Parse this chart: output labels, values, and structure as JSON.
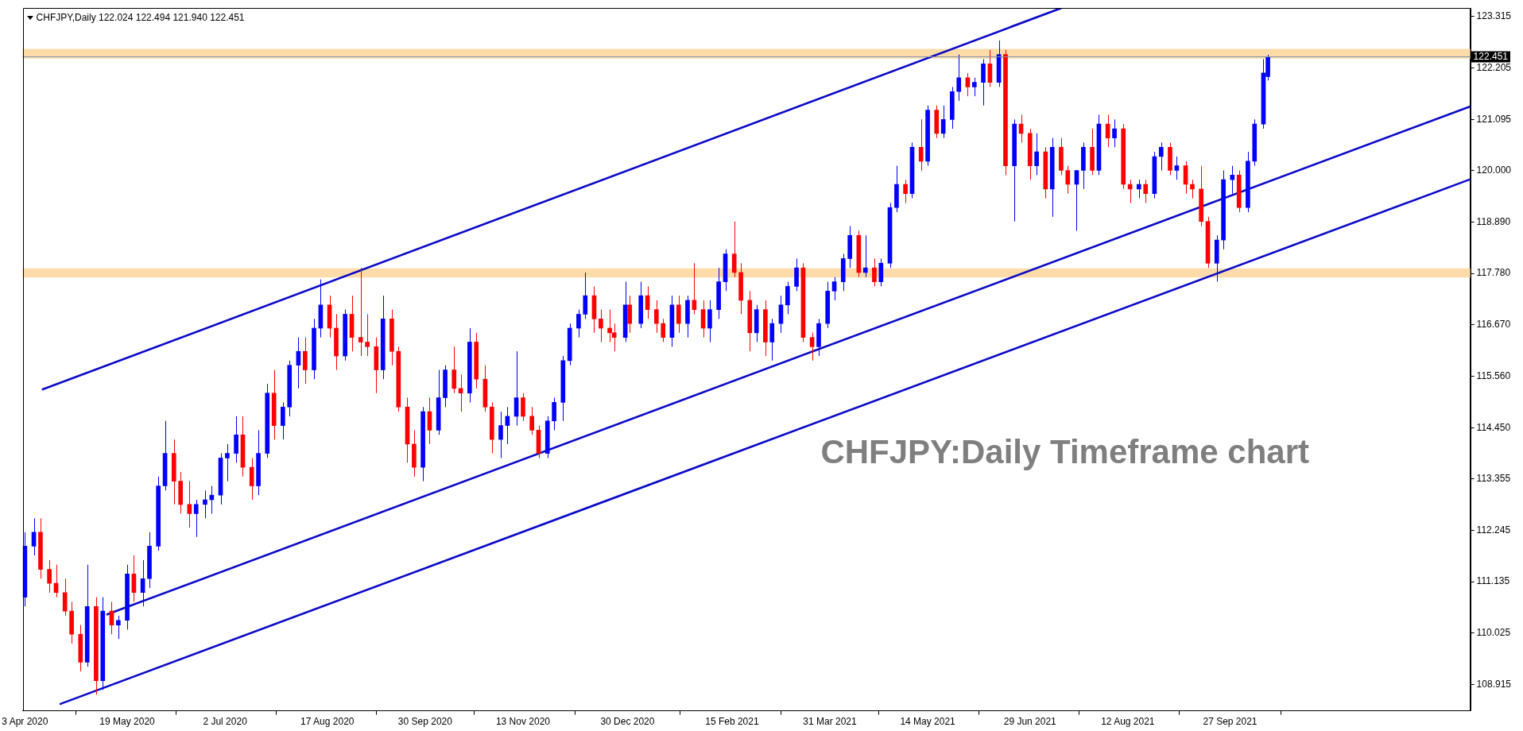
{
  "chart_data": {
    "type": "candlestick",
    "title": "CHFJPY,Daily 122.024 122.494 121.940 122.451",
    "annotations": [
      "CHFJPY:Daily Timeframe chart"
    ],
    "xlim": [
      "2020-04-02",
      "2022-01-13"
    ],
    "xticks": [
      {
        "value": "2020-04-03",
        "label": "3 Apr 2020"
      },
      {
        "value": "2020-05-19",
        "label": "19 May 2020"
      },
      {
        "value": "2020-07-02",
        "label": "2 Jul 2020"
      },
      {
        "value": "2020-08-17",
        "label": "17 Aug 2020"
      },
      {
        "value": "2020-09-30",
        "label": "30 Sep 2020"
      },
      {
        "value": "2020-11-13",
        "label": "13 Nov 2020"
      },
      {
        "value": "2020-12-30",
        "label": "30 Dec 2020"
      },
      {
        "value": "2021-02-15",
        "label": "15 Feb 2021"
      },
      {
        "value": "2021-03-31",
        "label": "31 Mar 2021"
      },
      {
        "value": "2021-05-14",
        "label": "14 May 2021"
      },
      {
        "value": "2021-06-29",
        "label": "29 Jun 2021"
      },
      {
        "value": "2021-08-12",
        "label": "12 Aug 2021"
      },
      {
        "value": "2021-09-27",
        "label": "27 Sep 2021"
      }
    ],
    "ylim": [
      108.35,
      123.5
    ],
    "yticks": [
      {
        "value": 108.915,
        "label": "108.915"
      },
      {
        "value": 110.025,
        "label": "110.025"
      },
      {
        "value": 111.135,
        "label": "111.135"
      },
      {
        "value": 112.245,
        "label": "112.245"
      },
      {
        "value": 113.355,
        "label": "113.355"
      },
      {
        "value": 114.45,
        "label": "114.450"
      },
      {
        "value": 115.56,
        "label": "115.560"
      },
      {
        "value": 116.67,
        "label": "116.670"
      },
      {
        "value": 117.78,
        "label": "117.780"
      },
      {
        "value": 118.89,
        "label": "118.890"
      },
      {
        "value": 120,
        "label": "120.000"
      },
      {
        "value": 121.095,
        "label": "121.095"
      },
      {
        "value": 122.205,
        "label": "122.205"
      },
      {
        "value": 123.315,
        "label": "123.315"
      }
    ],
    "bands": [
      {
        "axis": "y",
        "from": 122.41,
        "to": 122.62,
        "color": "#fddcaa"
      },
      {
        "axis": "y",
        "from": 117.69,
        "to": 117.89,
        "color": "#fddcaa"
      }
    ],
    "ref_lines": [
      {
        "axis": "y",
        "value": 122.451,
        "label": "122.451",
        "color": "#7b93ad"
      }
    ],
    "series": [
      {
        "x": [
          "2020-04-03",
          "2020-04-07",
          "2020-04-10",
          "2020-04-14",
          "2020-04-17",
          "2020-04-21",
          "2020-04-24",
          "2020-04-28",
          "2020-05-01",
          "2020-05-05",
          "2020-05-08",
          "2020-05-12",
          "2020-05-15",
          "2020-05-19",
          "2020-05-22",
          "2020-05-26",
          "2020-05-29",
          "2020-06-02",
          "2020-06-05",
          "2020-06-09",
          "2020-06-12",
          "2020-06-16",
          "2020-06-19",
          "2020-06-23",
          "2020-06-26",
          "2020-06-30",
          "2020-07-03",
          "2020-07-07",
          "2020-07-10",
          "2020-07-14",
          "2020-07-17",
          "2020-07-21",
          "2020-07-24",
          "2020-07-28",
          "2020-07-31",
          "2020-08-04",
          "2020-08-07",
          "2020-08-11",
          "2020-08-14",
          "2020-08-18",
          "2020-08-21",
          "2020-08-25",
          "2020-08-28",
          "2020-09-01",
          "2020-09-04",
          "2020-09-08",
          "2020-09-11",
          "2020-09-15",
          "2020-09-18",
          "2020-09-22",
          "2020-09-25",
          "2020-09-29",
          "2020-10-02",
          "2020-10-06",
          "2020-10-09",
          "2020-10-13",
          "2020-10-16",
          "2020-10-20",
          "2020-10-23",
          "2020-10-27",
          "2020-10-30",
          "2020-11-03",
          "2020-11-06",
          "2020-11-10",
          "2020-11-13",
          "2020-11-17",
          "2020-11-20",
          "2020-11-24",
          "2020-11-27",
          "2020-12-01",
          "2020-12-04",
          "2020-12-08",
          "2020-12-11",
          "2020-12-15",
          "2020-12-18",
          "2020-12-22",
          "2020-12-24",
          "2020-12-29",
          "2020-12-31",
          "2021-01-05",
          "2021-01-08",
          "2021-01-12",
          "2021-01-15",
          "2021-01-19",
          "2021-01-22",
          "2021-01-26",
          "2021-01-29",
          "2021-02-02",
          "2021-02-05",
          "2021-02-09",
          "2021-02-12",
          "2021-02-16",
          "2021-02-19",
          "2021-02-23",
          "2021-02-26",
          "2021-03-02",
          "2021-03-05",
          "2021-03-09",
          "2021-03-12",
          "2021-03-16",
          "2021-03-19",
          "2021-03-23",
          "2021-03-26",
          "2021-03-30",
          "2021-04-02",
          "2021-04-06",
          "2021-04-09",
          "2021-04-13",
          "2021-04-16",
          "2021-04-20",
          "2021-04-23",
          "2021-04-27",
          "2021-04-30",
          "2021-05-04",
          "2021-05-07",
          "2021-05-11",
          "2021-05-14",
          "2021-05-18",
          "2021-05-21",
          "2021-05-25",
          "2021-05-28",
          "2021-06-01",
          "2021-06-04",
          "2021-06-08",
          "2021-06-11",
          "2021-06-15",
          "2021-06-18",
          "2021-06-22",
          "2021-06-25",
          "2021-06-29",
          "2021-07-02",
          "2021-07-06",
          "2021-07-09",
          "2021-07-13",
          "2021-07-16",
          "2021-07-20",
          "2021-07-23",
          "2021-07-27",
          "2021-07-30",
          "2021-08-03",
          "2021-08-06",
          "2021-08-10",
          "2021-08-13",
          "2021-08-17",
          "2021-08-20",
          "2021-08-24",
          "2021-08-27",
          "2021-08-31",
          "2021-09-03",
          "2021-09-07",
          "2021-09-10",
          "2021-09-14",
          "2021-09-17",
          "2021-09-21",
          "2021-09-24",
          "2021-09-28",
          "2021-10-01",
          "2021-10-05",
          "2021-10-08",
          "2021-10-12",
          "2021-10-14"
        ],
        "ohlc": [
          [
            110.8,
            112.2,
            110.6,
            111.9
          ],
          [
            111.9,
            112.5,
            111.7,
            112.2
          ],
          [
            112.2,
            112.5,
            111.2,
            111.4
          ],
          [
            111.4,
            111.6,
            110.9,
            111.1
          ],
          [
            111.1,
            111.5,
            110.8,
            110.9
          ],
          [
            110.9,
            111.2,
            110.4,
            110.5
          ],
          [
            110.5,
            110.7,
            109.8,
            110.0
          ],
          [
            110.0,
            110.2,
            109.2,
            109.4
          ],
          [
            109.4,
            111.5,
            109.3,
            110.6
          ],
          [
            110.6,
            110.8,
            108.7,
            109.0
          ],
          [
            109.0,
            110.8,
            108.8,
            110.5
          ],
          [
            110.5,
            110.7,
            110.0,
            110.2
          ],
          [
            110.2,
            110.4,
            109.9,
            110.3
          ],
          [
            110.3,
            111.5,
            110.1,
            111.3
          ],
          [
            111.3,
            111.7,
            110.7,
            110.9
          ],
          [
            110.9,
            111.6,
            110.6,
            111.2
          ],
          [
            111.2,
            112.2,
            111.0,
            111.9
          ],
          [
            111.9,
            113.4,
            111.8,
            113.2
          ],
          [
            113.2,
            114.6,
            113.1,
            113.9
          ],
          [
            113.9,
            114.2,
            112.8,
            113.3
          ],
          [
            113.3,
            113.5,
            112.6,
            112.8
          ],
          [
            112.8,
            113.3,
            112.3,
            112.6
          ],
          [
            112.6,
            112.9,
            112.1,
            112.8
          ],
          [
            112.8,
            113.1,
            112.5,
            112.9
          ],
          [
            112.9,
            113.2,
            112.6,
            113.0
          ],
          [
            113.0,
            113.9,
            112.8,
            113.8
          ],
          [
            113.8,
            114.1,
            113.3,
            113.9
          ],
          [
            113.9,
            114.7,
            113.7,
            114.3
          ],
          [
            114.3,
            114.7,
            113.4,
            113.6
          ],
          [
            113.6,
            113.8,
            112.9,
            113.2
          ],
          [
            113.2,
            114.4,
            113.0,
            113.9
          ],
          [
            113.9,
            115.4,
            113.8,
            115.2
          ],
          [
            115.2,
            115.7,
            114.2,
            114.5
          ],
          [
            114.5,
            115.0,
            114.2,
            114.9
          ],
          [
            114.9,
            115.9,
            114.7,
            115.8
          ],
          [
            115.8,
            116.4,
            115.3,
            116.1
          ],
          [
            116.1,
            116.4,
            115.4,
            115.7
          ],
          [
            115.7,
            116.8,
            115.5,
            116.6
          ],
          [
            116.6,
            117.65,
            116.4,
            117.1
          ],
          [
            117.1,
            117.3,
            116.4,
            116.6
          ],
          [
            116.6,
            116.9,
            115.7,
            116.0
          ],
          [
            116.0,
            117.0,
            115.9,
            116.9
          ],
          [
            116.9,
            117.3,
            116.1,
            116.4
          ],
          [
            116.4,
            117.9,
            116.0,
            116.3
          ],
          [
            116.3,
            116.9,
            116.0,
            116.2
          ],
          [
            116.2,
            116.4,
            115.2,
            115.7
          ],
          [
            115.7,
            117.3,
            115.5,
            116.8
          ],
          [
            116.8,
            117.0,
            115.8,
            116.1
          ],
          [
            116.1,
            116.2,
            114.8,
            114.9
          ],
          [
            114.9,
            115.1,
            113.7,
            114.1
          ],
          [
            114.1,
            114.4,
            113.4,
            113.6
          ],
          [
            113.6,
            114.9,
            113.3,
            114.8
          ],
          [
            114.8,
            115.1,
            114.1,
            114.4
          ],
          [
            114.4,
            115.7,
            114.3,
            115.1
          ],
          [
            115.1,
            115.8,
            114.9,
            115.7
          ],
          [
            115.7,
            116.2,
            115.2,
            115.3
          ],
          [
            115.3,
            115.6,
            114.8,
            115.2
          ],
          [
            115.2,
            116.6,
            115.0,
            116.3
          ],
          [
            116.3,
            116.5,
            115.3,
            115.5
          ],
          [
            115.5,
            115.8,
            114.8,
            114.9
          ],
          [
            114.9,
            115.0,
            113.9,
            114.2
          ],
          [
            114.2,
            114.8,
            113.8,
            114.5
          ],
          [
            114.5,
            114.9,
            114.1,
            114.7
          ],
          [
            114.7,
            116.1,
            114.5,
            115.1
          ],
          [
            115.1,
            115.2,
            114.6,
            114.7
          ],
          [
            114.7,
            114.9,
            114.3,
            114.4
          ],
          [
            114.4,
            114.5,
            113.8,
            113.9
          ],
          [
            113.9,
            114.7,
            113.8,
            114.6
          ],
          [
            114.6,
            115.1,
            114.4,
            115.0
          ],
          [
            115.0,
            116.0,
            114.6,
            115.9
          ],
          [
            115.9,
            116.7,
            115.8,
            116.6
          ],
          [
            116.6,
            117.0,
            116.4,
            116.9
          ],
          [
            116.9,
            117.8,
            116.8,
            117.3
          ],
          [
            117.3,
            117.5,
            116.5,
            116.8
          ],
          [
            116.8,
            117.0,
            116.3,
            116.6
          ],
          [
            116.6,
            117.0,
            116.3,
            116.5
          ],
          [
            116.5,
            116.7,
            116.1,
            116.4
          ],
          [
            116.4,
            117.6,
            116.3,
            117.1
          ],
          [
            117.1,
            117.3,
            116.5,
            116.7
          ],
          [
            116.7,
            117.6,
            116.6,
            117.3
          ],
          [
            117.3,
            117.5,
            116.8,
            117.0
          ],
          [
            117.0,
            117.2,
            116.5,
            116.7
          ],
          [
            116.7,
            116.8,
            116.3,
            116.4
          ],
          [
            116.4,
            117.3,
            116.2,
            117.1
          ],
          [
            117.1,
            117.3,
            116.5,
            116.7
          ],
          [
            116.7,
            117.3,
            116.4,
            117.2
          ],
          [
            117.2,
            118.0,
            116.9,
            117.0
          ],
          [
            117.0,
            117.2,
            116.4,
            116.6
          ],
          [
            116.6,
            117.2,
            116.3,
            117.0
          ],
          [
            117.0,
            117.9,
            116.8,
            117.6
          ],
          [
            117.6,
            118.3,
            117.4,
            118.2
          ],
          [
            118.2,
            118.9,
            117.7,
            117.8
          ],
          [
            117.8,
            118.0,
            116.9,
            117.2
          ],
          [
            117.2,
            117.4,
            116.1,
            116.5
          ],
          [
            116.5,
            117.1,
            116.3,
            117.0
          ],
          [
            117.0,
            117.2,
            116.0,
            116.3
          ],
          [
            116.3,
            116.8,
            115.9,
            116.7
          ],
          [
            116.7,
            117.3,
            116.5,
            117.1
          ],
          [
            117.1,
            117.6,
            116.9,
            117.5
          ],
          [
            117.5,
            118.1,
            117.4,
            117.9
          ],
          [
            117.9,
            118.0,
            116.3,
            116.4
          ],
          [
            116.4,
            116.5,
            115.9,
            116.2
          ],
          [
            116.2,
            116.8,
            116.0,
            116.7
          ],
          [
            116.7,
            117.6,
            116.6,
            117.4
          ],
          [
            117.4,
            117.7,
            117.2,
            117.6
          ],
          [
            117.6,
            118.2,
            117.4,
            118.1
          ],
          [
            118.1,
            118.8,
            117.9,
            118.6
          ],
          [
            118.6,
            118.7,
            117.7,
            117.8
          ],
          [
            117.8,
            118.6,
            117.7,
            117.9
          ],
          [
            117.9,
            118.1,
            117.5,
            117.6
          ],
          [
            117.6,
            118.1,
            117.5,
            118.0
          ],
          [
            118.0,
            119.3,
            117.9,
            119.2
          ],
          [
            119.2,
            120.1,
            119.1,
            119.7
          ],
          [
            119.7,
            119.8,
            119.3,
            119.5
          ],
          [
            119.5,
            120.6,
            119.4,
            120.5
          ],
          [
            120.5,
            121.1,
            120.0,
            120.2
          ],
          [
            120.2,
            121.4,
            120.1,
            121.3
          ],
          [
            121.3,
            121.4,
            120.7,
            120.8
          ],
          [
            120.8,
            121.4,
            120.7,
            121.1
          ],
          [
            121.1,
            121.8,
            120.9,
            121.7
          ],
          [
            121.7,
            122.5,
            121.5,
            122.0
          ],
          [
            122.0,
            122.1,
            121.6,
            121.8
          ],
          [
            121.8,
            122.0,
            121.6,
            121.9
          ],
          [
            121.9,
            122.4,
            121.4,
            122.3
          ],
          [
            122.3,
            122.6,
            121.8,
            121.9
          ],
          [
            121.9,
            122.8,
            121.8,
            122.5
          ],
          [
            122.5,
            122.6,
            119.9,
            120.1
          ],
          [
            120.1,
            121.1,
            118.9,
            121.0
          ],
          [
            121.0,
            121.2,
            120.6,
            120.8
          ],
          [
            120.8,
            120.9,
            119.8,
            120.1
          ],
          [
            120.1,
            120.8,
            119.9,
            120.4
          ],
          [
            120.4,
            120.5,
            119.4,
            119.6
          ],
          [
            119.6,
            120.7,
            119.0,
            120.5
          ],
          [
            120.5,
            120.7,
            119.9,
            120.0
          ],
          [
            120.0,
            120.1,
            119.5,
            119.7
          ],
          [
            119.7,
            120.0,
            118.7,
            120.0
          ],
          [
            120.0,
            120.6,
            119.6,
            120.5
          ],
          [
            120.5,
            120.9,
            119.9,
            120.0
          ],
          [
            120.0,
            121.2,
            119.9,
            121.0
          ],
          [
            121.0,
            121.2,
            120.5,
            120.7
          ],
          [
            120.7,
            121.1,
            120.5,
            120.9
          ],
          [
            120.9,
            121.0,
            119.6,
            119.7
          ],
          [
            119.7,
            119.8,
            119.3,
            119.6
          ],
          [
            119.6,
            119.8,
            119.4,
            119.7
          ],
          [
            119.7,
            119.8,
            119.3,
            119.5
          ],
          [
            119.5,
            120.4,
            119.4,
            120.3
          ],
          [
            120.3,
            120.6,
            120.0,
            120.5
          ],
          [
            120.5,
            120.6,
            119.9,
            120.0
          ],
          [
            120.0,
            120.3,
            119.8,
            120.1
          ],
          [
            120.1,
            120.2,
            119.5,
            119.7
          ],
          [
            119.7,
            119.8,
            119.4,
            119.6
          ],
          [
            119.6,
            120.1,
            118.8,
            118.9
          ],
          [
            118.9,
            119.0,
            117.9,
            118.0
          ],
          [
            118.0,
            118.6,
            117.6,
            118.5
          ],
          [
            118.5,
            120.0,
            118.3,
            119.8
          ],
          [
            119.8,
            120.1,
            119.5,
            119.9
          ],
          [
            119.9,
            120.0,
            119.1,
            119.2
          ],
          [
            119.2,
            120.4,
            119.1,
            120.2
          ],
          [
            120.2,
            121.1,
            120.1,
            121.0
          ],
          [
            121.0,
            122.4,
            120.9,
            122.1
          ],
          [
            122.024,
            122.494,
            121.94,
            122.451
          ]
        ],
        "colors": [
          "#0000ff",
          "#0000ff",
          "#ff0000",
          "#ff0000",
          "#ff0000",
          "#ff0000",
          "#ff0000",
          "#ff0000",
          "#0000ff",
          "#ff0000",
          "#0000ff",
          "#ff0000",
          "#0000ff",
          "#0000ff",
          "#ff0000",
          "#0000ff",
          "#0000ff",
          "#0000ff",
          "#0000ff",
          "#ff0000",
          "#ff0000",
          "#ff0000",
          "#0000ff",
          "#0000ff",
          "#0000ff",
          "#0000ff",
          "#0000ff",
          "#0000ff",
          "#ff0000",
          "#ff0000",
          "#0000ff",
          "#0000ff",
          "#ff0000",
          "#0000ff",
          "#0000ff",
          "#0000ff",
          "#ff0000",
          "#0000ff",
          "#0000ff",
          "#ff0000",
          "#ff0000",
          "#0000ff",
          "#ff0000",
          "#ff0000",
          "#ff0000",
          "#ff0000",
          "#0000ff",
          "#ff0000",
          "#ff0000",
          "#ff0000",
          "#ff0000",
          "#0000ff",
          "#ff0000",
          "#0000ff",
          "#0000ff",
          "#ff0000",
          "#ff0000",
          "#0000ff",
          "#ff0000",
          "#ff0000",
          "#ff0000",
          "#0000ff",
          "#0000ff",
          "#0000ff",
          "#ff0000",
          "#ff0000",
          "#ff0000",
          "#0000ff",
          "#0000ff",
          "#0000ff",
          "#0000ff",
          "#0000ff",
          "#0000ff",
          "#ff0000",
          "#ff0000",
          "#ff0000",
          "#ff0000",
          "#0000ff",
          "#ff0000",
          "#0000ff",
          "#ff0000",
          "#ff0000",
          "#ff0000",
          "#0000ff",
          "#ff0000",
          "#0000ff",
          "#ff0000",
          "#ff0000",
          "#0000ff",
          "#0000ff",
          "#0000ff",
          "#ff0000",
          "#ff0000",
          "#ff0000",
          "#0000ff",
          "#ff0000",
          "#0000ff",
          "#0000ff",
          "#0000ff",
          "#0000ff",
          "#ff0000",
          "#ff0000",
          "#0000ff",
          "#0000ff",
          "#0000ff",
          "#0000ff",
          "#0000ff",
          "#ff0000",
          "#0000ff",
          "#ff0000",
          "#0000ff",
          "#0000ff",
          "#0000ff",
          "#ff0000",
          "#0000ff",
          "#ff0000",
          "#0000ff",
          "#ff0000",
          "#0000ff",
          "#0000ff",
          "#0000ff",
          "#ff0000",
          "#0000ff",
          "#0000ff",
          "#ff0000",
          "#0000ff",
          "#ff0000",
          "#0000ff",
          "#ff0000",
          "#ff0000",
          "#0000ff",
          "#ff0000",
          "#0000ff",
          "#ff0000",
          "#ff0000",
          "#0000ff",
          "#0000ff",
          "#ff0000",
          "#0000ff",
          "#ff0000",
          "#0000ff",
          "#ff0000",
          "#ff0000",
          "#0000ff",
          "#ff0000",
          "#0000ff",
          "#0000ff",
          "#ff0000",
          "#0000ff",
          "#ff0000",
          "#ff0000",
          "#ff0000",
          "#ff0000",
          "#0000ff",
          "#0000ff",
          "#0000ff",
          "#ff0000",
          "#0000ff",
          "#0000ff",
          "#0000ff",
          "#0000ff"
        ]
      },
      {
        "type": "line",
        "x": [
          "2020-04-11",
          "2021-07-13"
        ],
        "values": [
          115.28,
          123.5
        ],
        "color": "#0a0ac8"
      },
      {
        "type": "line",
        "x": [
          "2020-05-10",
          "2022-01-13"
        ],
        "values": [
          110.43,
          121.38
        ],
        "color": "#0a0ac8"
      },
      {
        "type": "line",
        "x": [
          "2020-04-19",
          "2022-01-13"
        ],
        "values": [
          108.5,
          119.81
        ],
        "color": "#0a0ac8"
      }
    ]
  }
}
